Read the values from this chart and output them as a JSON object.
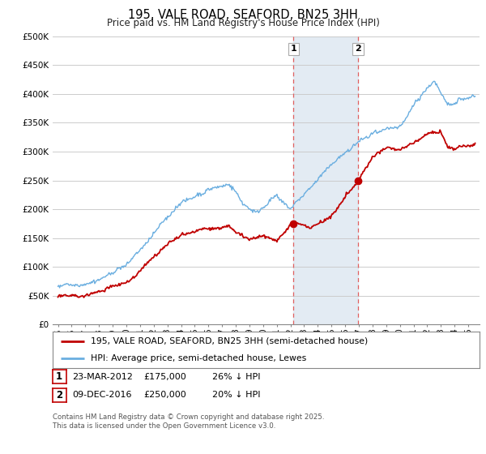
{
  "title": "195, VALE ROAD, SEAFORD, BN25 3HH",
  "subtitle": "Price paid vs. HM Land Registry's House Price Index (HPI)",
  "ylim": [
    0,
    500000
  ],
  "yticks": [
    0,
    50000,
    100000,
    150000,
    200000,
    250000,
    300000,
    350000,
    400000,
    450000,
    500000
  ],
  "ytick_labels": [
    "£0",
    "£50K",
    "£100K",
    "£150K",
    "£200K",
    "£250K",
    "£300K",
    "£350K",
    "£400K",
    "£450K",
    "£500K"
  ],
  "hpi_color": "#6aaee0",
  "price_color": "#c00000",
  "vline_color": "#e06060",
  "transaction1_date": 2012.22,
  "transaction1_price": 175000,
  "transaction2_date": 2016.94,
  "transaction2_price": 250000,
  "legend_line1": "195, VALE ROAD, SEAFORD, BN25 3HH (semi-detached house)",
  "legend_line2": "HPI: Average price, semi-detached house, Lewes",
  "table_row1": [
    "1",
    "23-MAR-2012",
    "£175,000",
    "26% ↓ HPI"
  ],
  "table_row2": [
    "2",
    "09-DEC-2016",
    "£250,000",
    "20% ↓ HPI"
  ],
  "footnote": "Contains HM Land Registry data © Crown copyright and database right 2025.\nThis data is licensed under the Open Government Licence v3.0.",
  "background_color": "#ffffff",
  "grid_color": "#cccccc",
  "highlight_color": "#dce6f1",
  "xlim_left": 1994.6,
  "xlim_right": 2025.8
}
